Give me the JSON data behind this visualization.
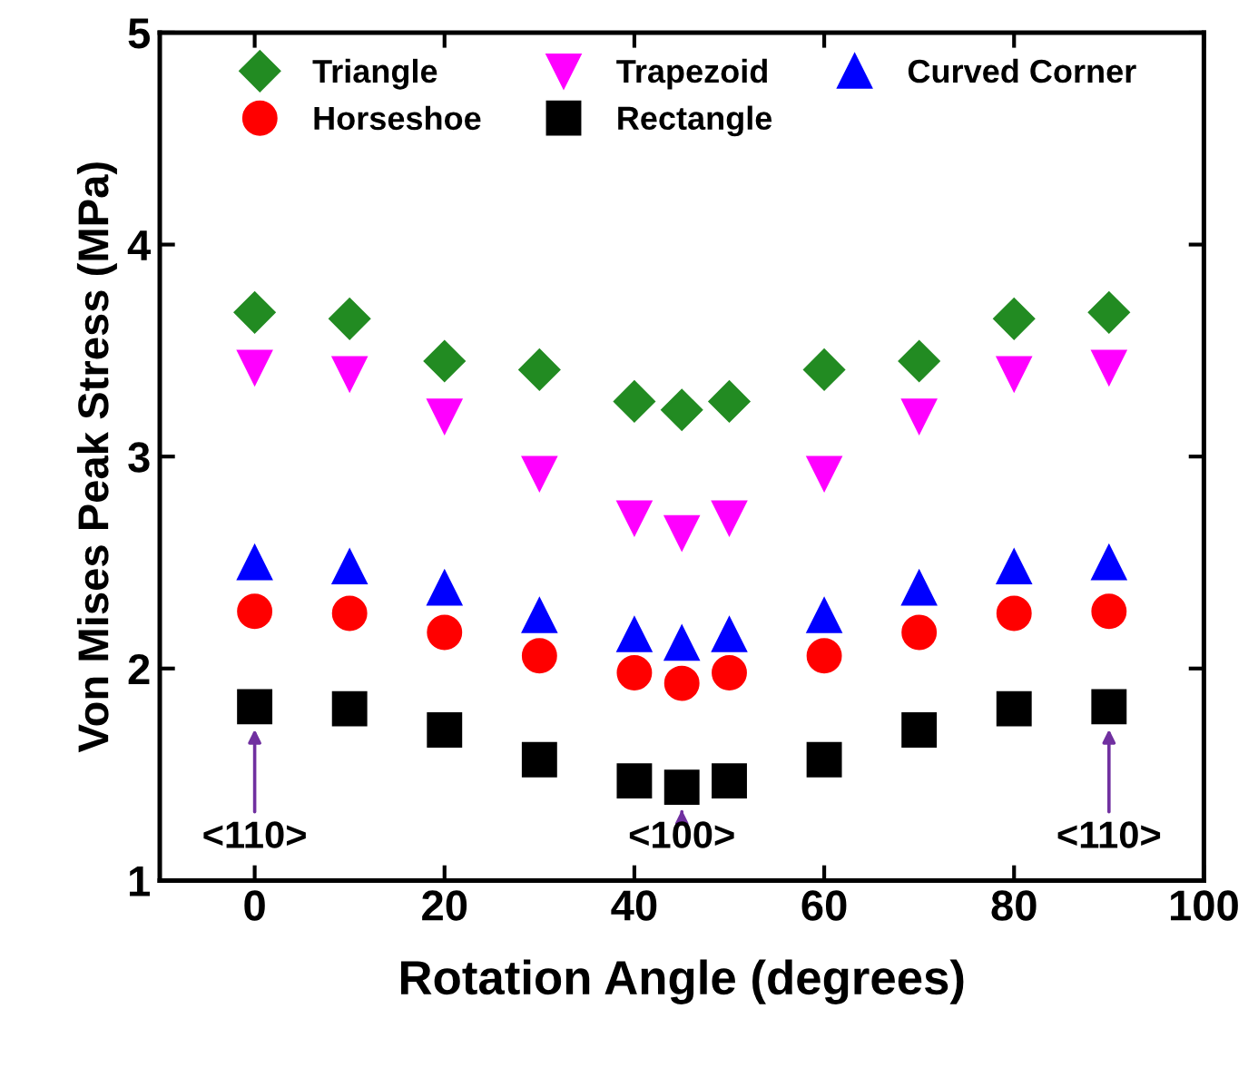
{
  "chart_data": {
    "type": "scatter",
    "xlabel": "Rotation Angle (degrees)",
    "ylabel": "Von Mises Peak Stress (MPa)",
    "x": [
      0,
      10,
      20,
      30,
      40,
      45,
      50,
      60,
      70,
      80,
      90
    ],
    "series": [
      {
        "name": "Triangle",
        "color": "#228b22",
        "marker": "diamond",
        "values": [
          3.68,
          3.65,
          3.45,
          3.41,
          3.26,
          3.22,
          3.26,
          3.41,
          3.45,
          3.65,
          3.68
        ]
      },
      {
        "name": "Horseshoe",
        "color": "#ff0000",
        "marker": "circle",
        "values": [
          2.27,
          2.26,
          2.17,
          2.06,
          1.98,
          1.93,
          1.98,
          2.06,
          2.17,
          2.26,
          2.27
        ]
      },
      {
        "name": "Trapezoid",
        "color": "#ff00ff",
        "marker": "triangle_down",
        "values": [
          3.42,
          3.39,
          3.19,
          2.92,
          2.71,
          2.64,
          2.71,
          2.92,
          3.19,
          3.39,
          3.42
        ]
      },
      {
        "name": "Rectangle",
        "color": "#000000",
        "marker": "square",
        "values": [
          1.82,
          1.81,
          1.71,
          1.57,
          1.47,
          1.44,
          1.47,
          1.57,
          1.71,
          1.81,
          1.82
        ]
      },
      {
        "name": "Curved Corner",
        "color": "#0000ff",
        "marker": "triangle",
        "values": [
          2.5,
          2.48,
          2.38,
          2.25,
          2.16,
          2.12,
          2.16,
          2.25,
          2.38,
          2.48,
          2.5
        ]
      }
    ],
    "annotations": [
      "<110>",
      "<100>",
      "<110>"
    ],
    "xlim": [
      -10,
      100
    ],
    "xticks": [
      0,
      20,
      40,
      60,
      80,
      100
    ],
    "ylim": [
      1,
      5
    ],
    "yticks": [
      1,
      2,
      3,
      4,
      5
    ],
    "grid": false,
    "legend": "top"
  }
}
